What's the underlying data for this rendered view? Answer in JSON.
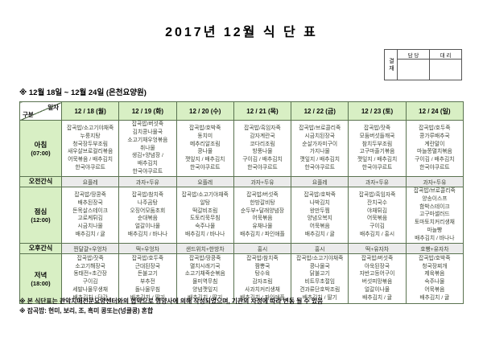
{
  "title": "2017년 12월 식 단 표",
  "approval": {
    "stamp": "결재",
    "columns": [
      "담 당",
      "대 리"
    ]
  },
  "period_note": "※ 12월 18일 ~ 12월 24일 (은천요양원)",
  "table": {
    "corner": {
      "top": "일자",
      "bottom": "구분"
    },
    "days": [
      "12 / 18 (월)",
      "12 / 19 (화)",
      "12 / 20 (수)",
      "12 / 21 (목)",
      "12 / 22 (금)",
      "12 / 23 (토)",
      "12 / 24 (일)"
    ],
    "rows": [
      {
        "type": "meal",
        "label": "아침",
        "time": "(07:00)",
        "cells": [
          [
            "잡곡밥/소고기야채죽",
            "누룽지탕",
            "청국장두부조림",
            "새우살브로컬리볶음",
            "어묵볶음 / 배추김치",
            "한국야쿠르트"
          ],
          [
            "잡곡밥/버섯죽",
            "김치콩나물국",
            "소고기채우엉볶음",
            "취나물",
            "생김+양념장 /",
            "배추김치",
            "한국야쿠르트"
          ],
          [
            "잡곡밥/호박죽",
            "동치미",
            "메추리알조림",
            "콩나물",
            "깻잎지 / 배추김치",
            "한국야쿠르트"
          ],
          [
            "잡곡밥/흑임자죽",
            "감자계란국",
            "코다리조림",
            "방풍나물",
            "구이김 / 배추김치",
            "한국야쿠르트"
          ],
          [
            "잡곡밥/브로콜리죽",
            "시금치된장국",
            "순살가자미구이",
            "가지나물",
            "깻잎지 / 배추김치",
            "한국야쿠르트"
          ],
          [
            "잡곡밥/잣죽",
            "모둠버섯들깨국",
            "참치두부조림",
            "고구마줄기볶음",
            "깻잎지 / 배추김치",
            "한국야쿠르트"
          ],
          [
            "잡곡밥/호두죽",
            "콩가루배추국",
            "계란말이",
            "마늘쫑멸치볶음",
            "구이김 / 배추김치",
            "한국야쿠르트"
          ]
        ]
      },
      {
        "type": "snack",
        "label": "오전간식",
        "cells": [
          "요플레",
          "과자+두유",
          "요플레",
          "과자+두유",
          "요플레",
          "과자+두유",
          "과자+두유"
        ]
      },
      {
        "type": "meal",
        "label": "점심",
        "time": "(12:00)",
        "cells": [
          [
            "잡곡밥/땅콩죽",
            "배추된장국",
            "돈목살스테이크",
            "고로케튀김",
            "시금치나물",
            "배추김치 / 귤"
          ],
          [
            "잡곡밥/참치죽",
            "나주곰탕",
            "오징어모둠초회",
            "순대볶음",
            "얼갈이나물",
            "배추김치 / 바나나"
          ],
          [
            "잡곡밥/소고기야채죽",
            "알탕",
            "떡갈비조림",
            "도토리묵무침",
            "숙주나물",
            "배추김치 / 바나나"
          ],
          [
            "잡곡밥/버섯죽",
            "한방갈비탕",
            "순두부+달래양념장",
            "어묵볶음",
            "유채나물",
            "배추김치 / 파인애플"
          ],
          [
            "잡곡밥/호박죽",
            "나박김치",
            "왕만두찜",
            "양념오복지",
            "어묵볶음",
            "배추김치 / 귤"
          ],
          [
            "잡곡밥/흑임자죽",
            "잔치국수",
            "야채튀김",
            "어묵볶음",
            "구이김",
            "배추김치 / 홍시"
          ],
          [
            "잡곡밥/브로콜리죽",
            "양송이스프",
            "함박스테이크",
            "고구마샐러드",
            "토마토치커리생채",
            "마늘빵",
            "배추김치 / 바나나"
          ]
        ]
      },
      {
        "type": "snack",
        "label": "오후간식",
        "cells": [
          "찐달걀+우엉차",
          "떡+우엉차",
          "샌드위치+한방차",
          "홍시",
          "홍시",
          "떡+유자차",
          "호빵+유자차"
        ]
      },
      {
        "type": "meal",
        "label": "저녁",
        "time": "(18:00)",
        "cells": [
          [
            "잡곡밥/잣죽",
            "소고기해장국",
            "동태전+초간장",
            "구이김",
            "세발나물무생채",
            "배추김치 / 단감"
          ],
          [
            "잡곡밥/호두죽",
            "근대된장국",
            "돈불고기",
            "부추전",
            "돌나물무침",
            "배추김치 / 딸기"
          ],
          [
            "잡곡밥/땅콩죽",
            "멸치시래기국",
            "소고기채죽순볶음",
            "물미역무침",
            "양념깻잎지",
            "배추김치 / 딸기"
          ],
          [
            "잡곡밥/참치죽",
            "짬뽕국",
            "탕수육",
            "감자조림",
            "사과치커리생채",
            "배추김치 / 파인애플"
          ],
          [
            "잡곡밥/소고기야채죽",
            "콩나물국",
            "닭불고기",
            "비트무초절임",
            "견과류단호박조림",
            "배추김치 / 딸기"
          ],
          [
            "잡곡밥/버섯죽",
            "아욱된장국",
            "자반고등어구이",
            "버섯피망볶음",
            "얼갈이나물",
            "배추김치 / 귤"
          ],
          [
            "잡곡밥/호박죽",
            "청국장찌개",
            "제육볶음",
            "숙주나물",
            "어묵볶음",
            "배추김치 / 귤"
          ]
        ]
      }
    ]
  },
  "footnotes": [
    "※ 본 식단표는 관악치매전문요양센터와의 협약으로 영양사에 의해 작성되었으며, 기관의 사정에 따라 변동 될 수 있음",
    "※ 잡곡밥: 현미, 보리, 조, 흑미 콩또는(넝쿨콩) 혼합"
  ],
  "colors": {
    "header_bg": "#d8efc4",
    "snack_bg": "#ebebeb",
    "border": "#5a7350"
  }
}
